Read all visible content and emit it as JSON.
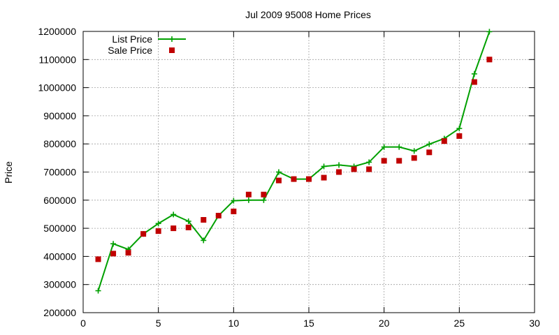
{
  "chart_data": {
    "type": "line",
    "title": "Jul 2009 95008 Home Prices",
    "xlabel": "",
    "ylabel": "Price",
    "xlim": [
      0,
      30
    ],
    "ylim": [
      200000,
      1200000
    ],
    "xticks": [
      0,
      5,
      10,
      15,
      20,
      25,
      30
    ],
    "yticks": [
      200000,
      300000,
      400000,
      500000,
      600000,
      700000,
      800000,
      900000,
      1000000,
      1100000,
      1200000
    ],
    "grid": true,
    "legend_position": "top-left",
    "series": [
      {
        "name": "List Price",
        "style": "line-with-plus-markers",
        "color": "#00a000",
        "x": [
          1,
          2,
          3,
          4,
          5,
          6,
          7,
          8,
          9,
          10,
          11,
          12,
          13,
          14,
          15,
          16,
          17,
          18,
          19,
          20,
          21,
          22,
          23,
          24,
          25,
          26,
          27
        ],
        "values": [
          278000,
          445000,
          425000,
          480000,
          517000,
          549000,
          525000,
          457000,
          545000,
          598000,
          600000,
          600000,
          700000,
          675000,
          675000,
          720000,
          725000,
          720000,
          735000,
          789000,
          789000,
          775000,
          799000,
          819000,
          855000,
          1049000,
          1199000
        ]
      },
      {
        "name": "Sale Price",
        "style": "square-markers",
        "color": "#c00000",
        "x": [
          1,
          2,
          3,
          4,
          5,
          6,
          7,
          8,
          9,
          10,
          11,
          12,
          13,
          14,
          15,
          16,
          17,
          18,
          19,
          20,
          21,
          22,
          23,
          24,
          25,
          26,
          27
        ],
        "values": [
          390000,
          410000,
          413000,
          480000,
          490000,
          500000,
          503000,
          530000,
          545000,
          560000,
          620000,
          620000,
          670000,
          675000,
          675000,
          680000,
          700000,
          710000,
          710000,
          740000,
          740000,
          750000,
          770000,
          810000,
          828000,
          1020000,
          1100000
        ]
      }
    ]
  }
}
